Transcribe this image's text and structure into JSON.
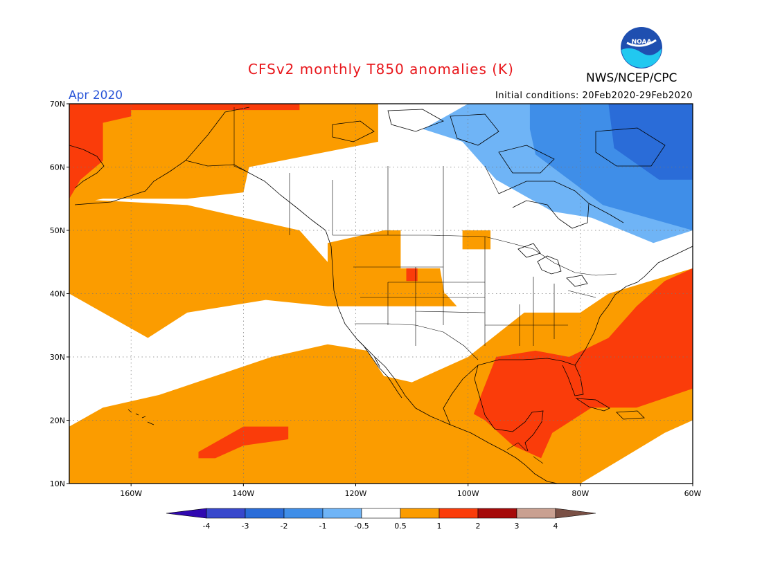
{
  "header": {
    "title": "CFSv2 monthly T850 anomalies (K)",
    "period": "Apr 2020",
    "initial_conditions": "Initial conditions: 20Feb2020-29Feb2020",
    "agency": "NWS/NCEP/CPC",
    "logo_text": "NOAA"
  },
  "colors": {
    "title": "#e8161b",
    "period": "#2a56d8",
    "neutral": "#ffffff",
    "pos_0_5": "#fb9c00",
    "pos_1": "#fa3c0a",
    "pos_2": "#a50a0a",
    "pos_3": "#c9a091",
    "pos_4": "#7a5045",
    "neg_0_5": "#6fb4f6",
    "neg_1": "#3f8ee8",
    "neg_2": "#2a6cd8",
    "neg_3": "#3848cc",
    "neg_4": "#3008b0"
  },
  "map": {
    "projection": "equirectangular",
    "lon_range": [
      -171,
      -60
    ],
    "lat_range": [
      10,
      70
    ],
    "lat_labels": [
      "70N",
      "60N",
      "50N",
      "40N",
      "30N",
      "20N",
      "10N"
    ],
    "lon_labels": [
      "160W",
      "140W",
      "120W",
      "100W",
      "80W",
      "60W"
    ],
    "gridlines": "dotted"
  },
  "anomaly_regions": [
    {
      "name": "alaska-bering-warm",
      "level": "0.5-1",
      "lon_lat": [
        [
          -171,
          70
        ],
        [
          -116,
          70
        ],
        [
          -116,
          64
        ],
        [
          -139,
          60
        ],
        [
          -140,
          56
        ],
        [
          -150,
          55
        ],
        [
          -165,
          55
        ],
        [
          -171,
          54
        ]
      ]
    },
    {
      "name": "chukotka-warm",
      "level": "1-2",
      "lon_lat": [
        [
          -171,
          70
        ],
        [
          -160,
          70
        ],
        [
          -160,
          68
        ],
        [
          -165,
          67
        ],
        [
          -165,
          61
        ],
        [
          -169,
          58
        ],
        [
          -171,
          55
        ]
      ]
    },
    {
      "name": "beaufort-warm",
      "level": "1-2",
      "lon_lat": [
        [
          -161,
          70
        ],
        [
          -130,
          70
        ],
        [
          -130,
          69
        ],
        [
          -161,
          69
        ]
      ]
    },
    {
      "name": "pacific-nw-warm",
      "level": "0.5-1",
      "lon_lat": [
        [
          -171,
          55
        ],
        [
          -150,
          54
        ],
        [
          -140,
          52
        ],
        [
          -130,
          50
        ],
        [
          -125,
          45
        ],
        [
          -114,
          40
        ],
        [
          -104,
          40
        ],
        [
          -102,
          38
        ],
        [
          -125,
          38
        ],
        [
          -136,
          39
        ],
        [
          -150,
          37
        ],
        [
          -157,
          33
        ],
        [
          -159,
          34
        ],
        [
          -171,
          40
        ]
      ]
    },
    {
      "name": "great-plains-warm",
      "level": "0.5-1",
      "lon_lat": [
        [
          -125,
          48
        ],
        [
          -115,
          50
        ],
        [
          -112,
          50
        ],
        [
          -112,
          44
        ],
        [
          -105,
          44
        ],
        [
          -104,
          39
        ],
        [
          -108,
          38
        ],
        [
          -115,
          40
        ],
        [
          -125,
          42
        ]
      ]
    },
    {
      "name": "wyoming-warm",
      "level": "1-2",
      "lon_lat": [
        [
          -111,
          44
        ],
        [
          -109,
          44
        ],
        [
          -109,
          42
        ],
        [
          -111,
          42
        ]
      ]
    },
    {
      "name": "ontario-warm",
      "level": "0.5-1",
      "lon_lat": [
        [
          -101,
          50
        ],
        [
          -96,
          50
        ],
        [
          -96,
          47
        ],
        [
          -101,
          47
        ]
      ]
    },
    {
      "name": "subtropical-pacific-warm",
      "level": "0.5-1",
      "lon_lat": [
        [
          -171,
          19
        ],
        [
          -165,
          22
        ],
        [
          -155,
          24
        ],
        [
          -145,
          27
        ],
        [
          -135,
          30
        ],
        [
          -125,
          32
        ],
        [
          -118,
          31
        ],
        [
          -115,
          27
        ],
        [
          -110,
          26
        ],
        [
          -100,
          30
        ],
        [
          -90,
          37
        ],
        [
          -80,
          37
        ],
        [
          -75,
          40
        ],
        [
          -60,
          44
        ],
        [
          -60,
          20
        ],
        [
          -65,
          18
        ],
        [
          -80,
          10
        ],
        [
          -171,
          10
        ]
      ]
    },
    {
      "name": "tropical-pacific-warm",
      "level": "1-2",
      "lon_lat": [
        [
          -148,
          15
        ],
        [
          -140,
          19
        ],
        [
          -132,
          19
        ],
        [
          -132,
          17
        ],
        [
          -140,
          16
        ],
        [
          -145,
          14
        ],
        [
          -148,
          14
        ]
      ]
    },
    {
      "name": "gulf-of-mexico-warm",
      "level": "1-2",
      "lon_lat": [
        [
          -99,
          21
        ],
        [
          -95,
          30
        ],
        [
          -88,
          31
        ],
        [
          -82,
          30
        ],
        [
          -75,
          33
        ],
        [
          -70,
          38
        ],
        [
          -65,
          42
        ],
        [
          -60,
          44
        ],
        [
          -60,
          25
        ],
        [
          -70,
          22
        ],
        [
          -78,
          22
        ],
        [
          -85,
          18
        ],
        [
          -87,
          14
        ],
        [
          -92,
          16
        ],
        [
          -97,
          20
        ]
      ]
    },
    {
      "name": "hudson-bay-cool",
      "level": "-1--0.5",
      "lon_lat": [
        [
          -100,
          70
        ],
        [
          -60,
          70
        ],
        [
          -60,
          50
        ],
        [
          -67,
          48
        ],
        [
          -78,
          52
        ],
        [
          -85,
          53
        ],
        [
          -95,
          58
        ],
        [
          -101,
          64
        ],
        [
          -108,
          66
        ]
      ]
    },
    {
      "name": "labrador-cool",
      "level": "-2--1",
      "lon_lat": [
        [
          -89,
          70
        ],
        [
          -60,
          70
        ],
        [
          -60,
          50
        ],
        [
          -68,
          52
        ],
        [
          -76,
          54
        ],
        [
          -82,
          58
        ],
        [
          -88,
          62
        ],
        [
          -89,
          66
        ]
      ]
    },
    {
      "name": "baffin-cool",
      "level": "-3--2",
      "lon_lat": [
        [
          -75,
          70
        ],
        [
          -60,
          70
        ],
        [
          -60,
          58
        ],
        [
          -66,
          58
        ],
        [
          -74,
          63
        ]
      ]
    }
  ],
  "colorbar": {
    "labels": [
      "-4",
      "-3",
      "-2",
      "-1",
      "-0.5",
      "0.5",
      "1",
      "2",
      "3",
      "4"
    ],
    "colors": [
      "#3008b0",
      "#3848cc",
      "#2a6cd8",
      "#3f8ee8",
      "#6fb4f6",
      "#ffffff",
      "#fb9c00",
      "#fa3c0a",
      "#a50a0a",
      "#c9a091",
      "#7a5045"
    ]
  }
}
